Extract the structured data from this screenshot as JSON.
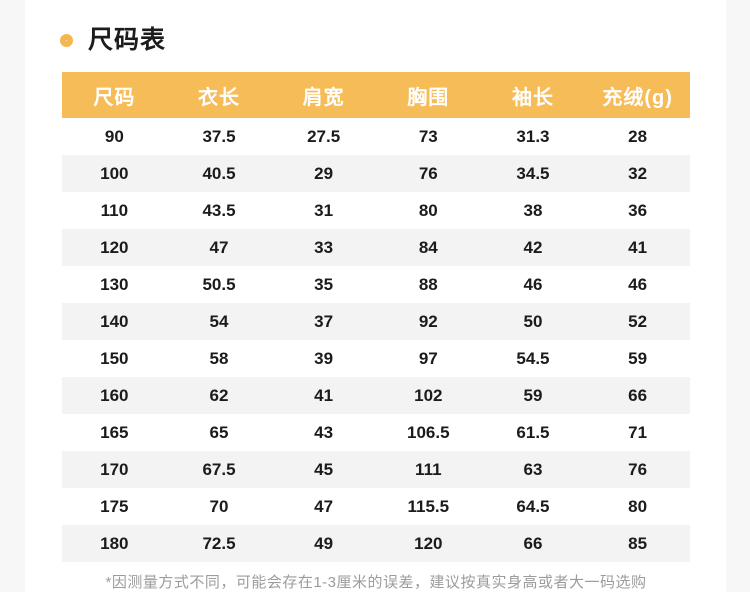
{
  "page": {
    "outer_background": "#f7f7f7",
    "content_background": "#ffffff"
  },
  "title": {
    "text": "尺码表",
    "bullet_icon": "ring-icon",
    "accent_color": "#f6b64e"
  },
  "size_table": {
    "header_background": "#f6bc58",
    "header_text_color": "#ffffff",
    "stripe_color": "#f3f3f3",
    "columns": [
      "尺码",
      "衣长",
      "肩宽",
      "胸围",
      "袖长",
      "充绒(g)"
    ],
    "rows": [
      [
        "90",
        "37.5",
        "27.5",
        "73",
        "31.3",
        "28"
      ],
      [
        "100",
        "40.5",
        "29",
        "76",
        "34.5",
        "32"
      ],
      [
        "110",
        "43.5",
        "31",
        "80",
        "38",
        "36"
      ],
      [
        "120",
        "47",
        "33",
        "84",
        "42",
        "41"
      ],
      [
        "130",
        "50.5",
        "35",
        "88",
        "46",
        "46"
      ],
      [
        "140",
        "54",
        "37",
        "92",
        "50",
        "52"
      ],
      [
        "150",
        "58",
        "39",
        "97",
        "54.5",
        "59"
      ],
      [
        "160",
        "62",
        "41",
        "102",
        "59",
        "66"
      ],
      [
        "165",
        "65",
        "43",
        "106.5",
        "61.5",
        "71"
      ],
      [
        "170",
        "67.5",
        "45",
        "111",
        "63",
        "76"
      ],
      [
        "175",
        "70",
        "47",
        "115.5",
        "64.5",
        "80"
      ],
      [
        "180",
        "72.5",
        "49",
        "120",
        "66",
        "85"
      ]
    ]
  },
  "footnote": "*因测量方式不同，可能会存在1-3厘米的误差，建议按真实身高或者大一码选购",
  "chart_data": {
    "type": "table",
    "title": "尺码表",
    "columns": [
      "尺码",
      "衣长",
      "肩宽",
      "胸围",
      "袖长",
      "充绒(g)"
    ],
    "rows": [
      [
        90,
        37.5,
        27.5,
        73,
        31.3,
        28
      ],
      [
        100,
        40.5,
        29,
        76,
        34.5,
        32
      ],
      [
        110,
        43.5,
        31,
        80,
        38,
        36
      ],
      [
        120,
        47,
        33,
        84,
        42,
        41
      ],
      [
        130,
        50.5,
        35,
        88,
        46,
        46
      ],
      [
        140,
        54,
        37,
        92,
        50,
        52
      ],
      [
        150,
        58,
        39,
        97,
        54.5,
        59
      ],
      [
        160,
        62,
        41,
        102,
        59,
        66
      ],
      [
        165,
        65,
        43,
        106.5,
        61.5,
        71
      ],
      [
        170,
        67.5,
        45,
        111,
        63,
        76
      ],
      [
        175,
        70,
        47,
        115.5,
        64.5,
        80
      ],
      [
        180,
        72.5,
        49,
        120,
        66,
        85
      ]
    ],
    "annotations": [
      "*因测量方式不同，可能会存在1-3厘米的误差，建议按真实身高或者大一码选购"
    ],
    "layout_hints": {
      "header_background": "#f6bc58",
      "zebra_striping": true,
      "alignment": "center"
    }
  }
}
